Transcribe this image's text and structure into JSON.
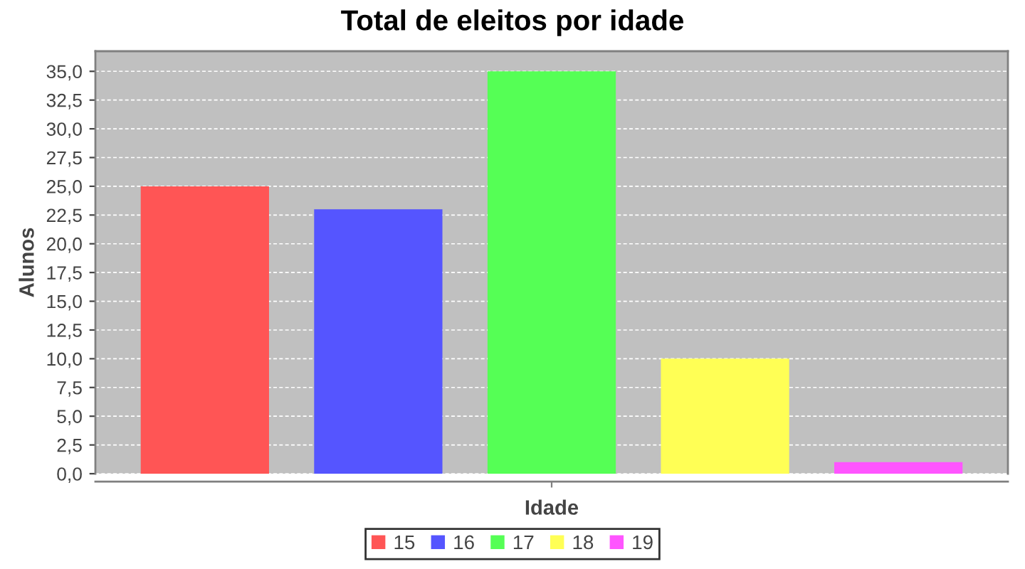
{
  "chart_data": {
    "type": "bar",
    "title": "Total de eleitos por idade",
    "xlabel": "Idade",
    "ylabel": "Alunos",
    "categories": [
      null
    ],
    "series": [
      {
        "name": "15",
        "color": "#ff5555",
        "values": [
          25
        ]
      },
      {
        "name": "16",
        "color": "#5555ff",
        "values": [
          23
        ]
      },
      {
        "name": "17",
        "color": "#55ff55",
        "values": [
          35
        ]
      },
      {
        "name": "18",
        "color": "#ffff55",
        "values": [
          10
        ]
      },
      {
        "name": "19",
        "color": "#ff55ff",
        "values": [
          1
        ]
      }
    ],
    "ylim": [
      0,
      36.75
    ],
    "yticks": [
      {
        "value": 0,
        "label": "0,0"
      },
      {
        "value": 2.5,
        "label": "2,5"
      },
      {
        "value": 5,
        "label": "5,0"
      },
      {
        "value": 7.5,
        "label": "7,5"
      },
      {
        "value": 10,
        "label": "10,0"
      },
      {
        "value": 12.5,
        "label": "12,5"
      },
      {
        "value": 15,
        "label": "15,0"
      },
      {
        "value": 17.5,
        "label": "17,5"
      },
      {
        "value": 20,
        "label": "20,0"
      },
      {
        "value": 22.5,
        "label": "22,5"
      },
      {
        "value": 25,
        "label": "25,0"
      },
      {
        "value": 27.5,
        "label": "27,5"
      },
      {
        "value": 30,
        "label": "30,0"
      },
      {
        "value": 32.5,
        "label": "32,5"
      },
      {
        "value": 35,
        "label": "35,0"
      }
    ],
    "grid": "y",
    "legend": "bottom"
  }
}
